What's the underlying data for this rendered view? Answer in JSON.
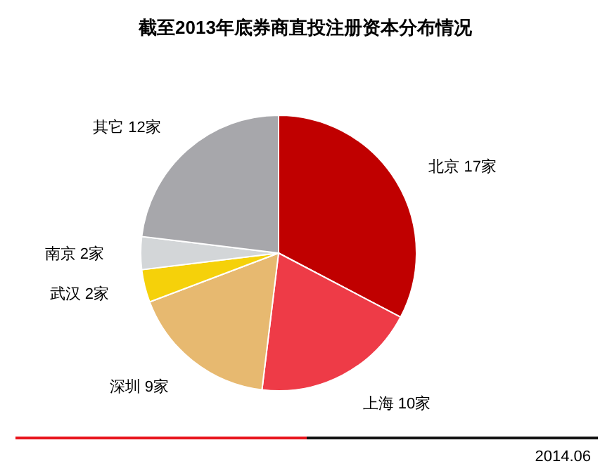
{
  "chart_data": {
    "type": "pie",
    "title": "截至2013年底券商直投注册资本分布情况",
    "categories": [
      "北京",
      "上海",
      "深圳",
      "武汉",
      "南京",
      "其它"
    ],
    "values": [
      17,
      10,
      9,
      2,
      2,
      12
    ],
    "value_labels": [
      "17家",
      "10家",
      "9家",
      "2家",
      "2家",
      "12家"
    ],
    "colors": [
      "#c00000",
      "#ee3b47",
      "#e7b970",
      "#f5d10a",
      "#d3d6d8",
      "#a7a7ab"
    ],
    "annotations": [
      "2014.06"
    ]
  }
}
